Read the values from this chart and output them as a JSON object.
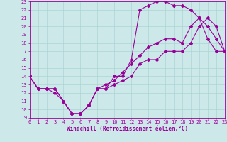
{
  "xlabel": "Windchill (Refroidissement éolien,°C)",
  "background_color": "#cce8e8",
  "line_color": "#990099",
  "grid_color": "#aad4d4",
  "xlim": [
    0,
    23
  ],
  "ylim": [
    9,
    23
  ],
  "yticks": [
    9,
    10,
    11,
    12,
    13,
    14,
    15,
    16,
    17,
    18,
    19,
    20,
    21,
    22,
    23
  ],
  "xticks": [
    0,
    1,
    2,
    3,
    4,
    5,
    6,
    7,
    8,
    9,
    10,
    11,
    12,
    13,
    14,
    15,
    16,
    17,
    18,
    19,
    20,
    21,
    22,
    23
  ],
  "curve1_x": [
    0,
    1,
    2,
    3,
    4,
    5,
    6,
    7,
    8,
    9,
    10,
    11,
    12,
    13,
    14,
    15,
    16,
    17,
    18,
    19,
    20,
    21,
    22,
    23
  ],
  "curve1_y": [
    14,
    12.5,
    12.5,
    12,
    11,
    9.5,
    9.5,
    10.5,
    12.5,
    12.5,
    14,
    14,
    16,
    22,
    22.5,
    23,
    23,
    22.5,
    22.5,
    22,
    21,
    18.5,
    17,
    17
  ],
  "curve2_x": [
    0,
    1,
    2,
    3,
    4,
    5,
    6,
    7,
    8,
    9,
    10,
    11,
    12,
    13,
    14,
    15,
    16,
    17,
    18,
    19,
    20,
    21,
    22,
    23
  ],
  "curve2_y": [
    14,
    12.5,
    12.5,
    12.5,
    11,
    9.5,
    9.5,
    10.5,
    12.5,
    13,
    13.5,
    14.5,
    15.5,
    16.5,
    17.5,
    18,
    18.5,
    18.5,
    18,
    20,
    21,
    20,
    18.5,
    17
  ],
  "curve3_x": [
    0,
    1,
    2,
    3,
    4,
    5,
    6,
    7,
    8,
    9,
    10,
    11,
    12,
    13,
    14,
    15,
    16,
    17,
    18,
    19,
    20,
    21,
    22,
    23
  ],
  "curve3_y": [
    14,
    12.5,
    12.5,
    12.5,
    11,
    9.5,
    9.5,
    10.5,
    12.5,
    12.5,
    13,
    13.5,
    14,
    15.5,
    16,
    16,
    17,
    17,
    17,
    18,
    20,
    21,
    20,
    17
  ],
  "marker": "D",
  "markersize": 2,
  "linewidth": 0.8,
  "xlabel_fontsize": 5.5,
  "tick_fontsize": 5.0
}
